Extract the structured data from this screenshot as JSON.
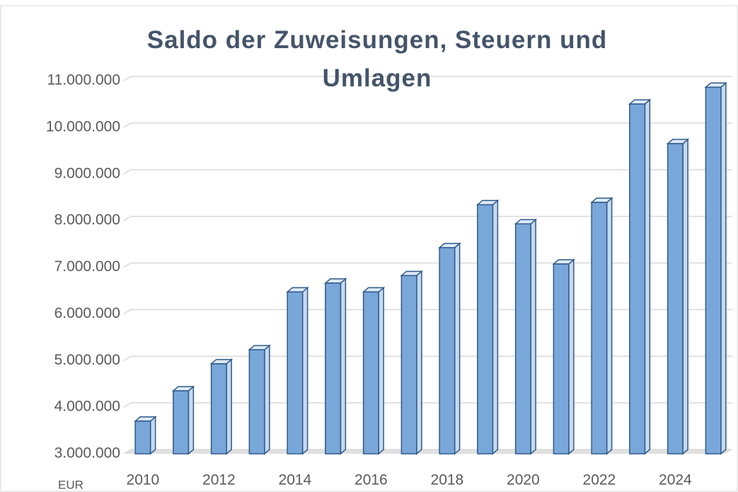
{
  "chart_data": {
    "type": "bar3d",
    "title": "Saldo der Zuweisungen, Steuern und Umlagen",
    "y_label": "EUR",
    "categories": [
      "2010",
      null,
      "2012",
      null,
      "2014",
      null,
      "2016",
      null,
      "2018",
      null,
      "2020",
      null,
      "2022",
      null,
      "2024",
      null
    ],
    "values": [
      3700000,
      4350000,
      4930000,
      5230000,
      6470000,
      6660000,
      6470000,
      6820000,
      7420000,
      8340000,
      7930000,
      7070000,
      8390000,
      10500000,
      9650000,
      10860000
    ],
    "color": "#7aa7d9",
    "ylim": [
      3000000,
      11000000
    ],
    "yticks": [
      {
        "value": 3000000,
        "label": "3.000.000"
      },
      {
        "value": 4000000,
        "label": "4.000.000"
      },
      {
        "value": 5000000,
        "label": "5.000.000"
      },
      {
        "value": 6000000,
        "label": "6.000.000"
      },
      {
        "value": 7000000,
        "label": "7.000.000"
      },
      {
        "value": 8000000,
        "label": "8.000.000"
      },
      {
        "value": 9000000,
        "label": "9.000.000"
      },
      {
        "value": 10000000,
        "label": "10.000.000"
      },
      {
        "value": 11000000,
        "label": "11.000.000"
      }
    ],
    "grid": true
  }
}
